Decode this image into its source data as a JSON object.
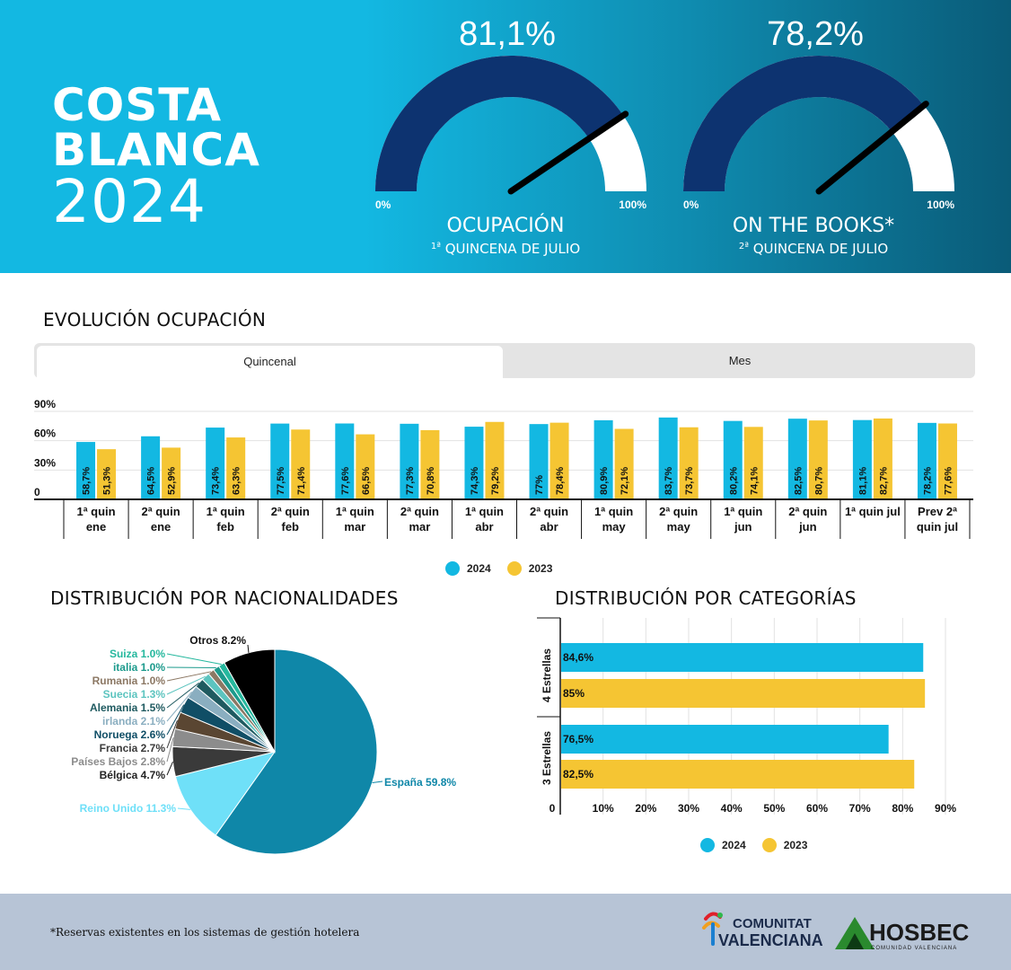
{
  "hero": {
    "title_line1": "COSTA",
    "title_line2": "BLANCA",
    "title_line3": "2024",
    "gauges": [
      {
        "value_label": "81,1%",
        "value": 81.1,
        "min_label": "0%",
        "max_label": "100%",
        "label": "OCUPACIÓN",
        "sublabel_ord": "1ª",
        "sublabel": "QUINCENA DE JULIO"
      },
      {
        "value_label": "78,2%",
        "value": 78.2,
        "min_label": "0%",
        "max_label": "100%",
        "label": "ON THE BOOKS*",
        "sublabel_ord": "2ª",
        "sublabel": "QUINCENA DE JULIO"
      }
    ],
    "colors": {
      "gauge_fill": "#0d3370",
      "gauge_empty": "#ffffff",
      "needle": "#000000"
    }
  },
  "evolucion": {
    "title": "EVOLUCIÓN OCUPACIÓN",
    "tabs": {
      "active": "Quincenal",
      "other": "Mes"
    }
  },
  "nacionalidades": {
    "title": "DISTRIBUCIÓN POR NACIONALIDADES"
  },
  "categorias": {
    "title": "DISTRIBUCIÓN POR CATEGORÍAS"
  },
  "chart_data": [
    {
      "type": "bar",
      "title": "EVOLUCIÓN OCUPACIÓN",
      "categories": [
        "1ª quin ene",
        "2ª quin ene",
        "1ª quin feb",
        "2ª quin feb",
        "1ª quin mar",
        "2ª quin mar",
        "1ª quin abr",
        "2ª quin abr",
        "1ª quin may",
        "2ª quin may",
        "1ª quin jun",
        "2ª quin jun",
        "1ª quin jul",
        "Prev 2ª quin jul"
      ],
      "series": [
        {
          "name": "2024",
          "color": "#13b8e2",
          "values": [
            58.7,
            64.5,
            73.4,
            77.5,
            77.6,
            77.3,
            74.3,
            77,
            80.9,
            83.7,
            80.2,
            82.5,
            81.1,
            78.2
          ],
          "labels": [
            "58,7%",
            "64,5%",
            "73,4%",
            "77,5%",
            "77,6%",
            "77,3%",
            "74,3%",
            "77%",
            "80,9%",
            "83,7%",
            "80,2%",
            "82,5%",
            "81,1%",
            "78,2%"
          ]
        },
        {
          "name": "2023",
          "color": "#f5c533",
          "values": [
            51.3,
            52.9,
            63.3,
            71.4,
            66.5,
            70.8,
            79.2,
            78.4,
            72.1,
            73.7,
            74.1,
            80.7,
            82.7,
            77.6
          ],
          "labels": [
            "51,3%",
            "52,9%",
            "63,3%",
            "71,4%",
            "66,5%",
            "70,8%",
            "79,2%",
            "78,4%",
            "72,1%",
            "73,7%",
            "74,1%",
            "80,7%",
            "82,7%",
            "77,6%"
          ]
        }
      ],
      "yticks": [
        "0",
        "30%",
        "60%",
        "90%"
      ],
      "ytick_values": [
        0,
        30,
        60,
        90
      ],
      "ylim": [
        0,
        90
      ],
      "legend": "bottom-center",
      "grid": true
    },
    {
      "type": "pie",
      "title": "DISTRIBUCIÓN POR NACIONALIDADES",
      "slices": [
        {
          "name": "España",
          "value": 59.8,
          "label": "España 59.8%",
          "color": "#0f87a8"
        },
        {
          "name": "Reino Unido",
          "value": 11.3,
          "label": "Reino Unido 11.3%",
          "color": "#6fe0f8"
        },
        {
          "name": "Bélgica",
          "value": 4.7,
          "label": "Bélgica 4.7%",
          "color": "#3a3a3a"
        },
        {
          "name": "Países Bajos",
          "value": 2.8,
          "label": "Países Bajos 2.8%",
          "color": "#8c8c8c"
        },
        {
          "name": "Francia",
          "value": 2.7,
          "label": "Francia 2.7%",
          "color": "#5a4632"
        },
        {
          "name": "Noruega",
          "value": 2.6,
          "label": "Noruega 2.6%",
          "color": "#104e66"
        },
        {
          "name": "irlanda",
          "value": 2.1,
          "label": "irlanda 2.1%",
          "color": "#8aaec0"
        },
        {
          "name": "Alemania",
          "value": 1.5,
          "label": "Alemania 1.5%",
          "color": "#1f5a60"
        },
        {
          "name": "Suecia",
          "value": 1.3,
          "label": "Suecia 1.3%",
          "color": "#5cc4bf"
        },
        {
          "name": "Rumania",
          "value": 1.0,
          "label": "Rumania 1.0%",
          "color": "#8c7864"
        },
        {
          "name": "italia",
          "value": 1.0,
          "label": "italia 1.0%",
          "color": "#1c9a8c"
        },
        {
          "name": "Suiza",
          "value": 1.0,
          "label": "Suiza 1.0%",
          "color": "#26b89e"
        },
        {
          "name": "Otros",
          "value": 8.2,
          "label": "Otros 8.2%",
          "color": "#000000"
        }
      ]
    },
    {
      "type": "bar",
      "orientation": "horizontal",
      "title": "DISTRIBUCIÓN POR CATEGORÍAS",
      "categories": [
        "4 Estrellas",
        "3 Estrellas"
      ],
      "series": [
        {
          "name": "2024",
          "color": "#13b8e2",
          "values": [
            84.6,
            76.5
          ],
          "labels": [
            "84,6%",
            "76,5%"
          ]
        },
        {
          "name": "2023",
          "color": "#f5c533",
          "values": [
            85,
            82.5
          ],
          "labels": [
            "85%",
            "82,5%"
          ]
        }
      ],
      "xticks": [
        "0",
        "10%",
        "20%",
        "30%",
        "40%",
        "50%",
        "60%",
        "70%",
        "80%",
        "90%"
      ],
      "xtick_values": [
        0,
        10,
        20,
        30,
        40,
        50,
        60,
        70,
        80,
        90
      ],
      "xlim": [
        0,
        90
      ],
      "legend": "bottom-center",
      "grid": true
    }
  ],
  "footer": {
    "footnote": "*Reservas existentes en los sistemas de gestión hotelera",
    "logo1_line1": "COMUNITAT",
    "logo1_line2": "VALENCIANA",
    "logo2_name": "HOSBEC",
    "logo2_sub": "COMUNIDAD VALENCIANA"
  }
}
